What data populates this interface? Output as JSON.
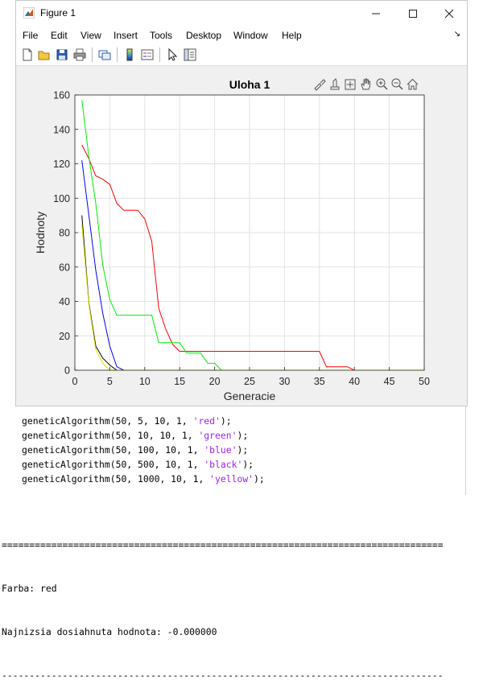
{
  "window": {
    "title": "Figure 1",
    "menu": [
      "File",
      "Edit",
      "View",
      "Insert",
      "Tools",
      "Desktop",
      "Window",
      "Help"
    ],
    "toolbar_icons": [
      "new-figure-icon",
      "open-file-icon",
      "save-icon",
      "print-icon",
      "link-icon",
      "colorbar-icon",
      "legend-icon",
      "pointer-icon",
      "property-editor-icon"
    ],
    "axes_toolbar_icons": [
      "brush-icon",
      "data-tips-icon",
      "data-cursor-icon",
      "pan-icon",
      "zoom-in-icon",
      "zoom-out-icon",
      "home-icon"
    ]
  },
  "chart_data": {
    "type": "line",
    "title": "Uloha 1",
    "xlabel": "Generacie",
    "ylabel": "Hodnoty",
    "xlim": [
      0,
      50
    ],
    "ylim": [
      0,
      160
    ],
    "xticks": [
      0,
      5,
      10,
      15,
      20,
      25,
      30,
      35,
      40,
      45,
      50
    ],
    "yticks": [
      0,
      20,
      40,
      60,
      80,
      100,
      120,
      140,
      160
    ],
    "grid": true,
    "series": [
      {
        "color": "#ff0000",
        "x": [
          1,
          2,
          3,
          4,
          5,
          6,
          7,
          8,
          9,
          10,
          11,
          12,
          13,
          14,
          15,
          16,
          35,
          36,
          39,
          40,
          50
        ],
        "y": [
          131,
          123,
          113,
          111,
          108,
          97,
          93,
          93,
          93,
          88,
          75,
          36,
          24,
          15,
          11,
          11,
          11,
          2,
          2,
          0,
          0
        ]
      },
      {
        "color": "#00ee00",
        "x": [
          1,
          2,
          3,
          4,
          5,
          6,
          7,
          11,
          12,
          14,
          15,
          16,
          18,
          19,
          20,
          21,
          50
        ],
        "y": [
          157,
          124,
          97,
          61,
          41,
          32,
          32,
          32,
          16,
          16,
          16,
          10,
          10,
          4,
          4,
          0,
          0
        ]
      },
      {
        "color": "#0000ff",
        "x": [
          1,
          2,
          3,
          4,
          5,
          6,
          7,
          50
        ],
        "y": [
          122,
          90,
          58,
          33,
          14,
          2,
          0,
          0
        ]
      },
      {
        "color": "#000000",
        "x": [
          1,
          2,
          3,
          4,
          5,
          6,
          50
        ],
        "y": [
          90,
          39,
          14,
          7,
          3,
          0,
          0
        ]
      },
      {
        "color": "#e0e000",
        "x": [
          1,
          2,
          3,
          4,
          5,
          50
        ],
        "y": [
          85,
          38,
          12,
          4,
          0,
          0
        ]
      }
    ]
  },
  "code_lines": [
    {
      "prefix": "geneticAlgorithm(50, 5, 10, 1, ",
      "arg": "'red'",
      "suffix": ");"
    },
    {
      "prefix": "geneticAlgorithm(50, 10, 10, 1, ",
      "arg": "'green'",
      "suffix": ");"
    },
    {
      "prefix": "geneticAlgorithm(50, 100, 10, 1, ",
      "arg": "'blue'",
      "suffix": ");"
    },
    {
      "prefix": "geneticAlgorithm(50, 500, 10, 1, ",
      "arg": "'black'",
      "suffix": ");"
    },
    {
      "prefix": "geneticAlgorithm(50, 1000, 10, 1, ",
      "arg": "'yellow'",
      "suffix": ");"
    }
  ],
  "console": {
    "rule_top": "================================================================================",
    "line1": "Farba: red",
    "line2": "Najnizsia dosiahnuta hodnota: -0.000000",
    "rule_bottom": "--------------------------------------------------------------------------------"
  }
}
